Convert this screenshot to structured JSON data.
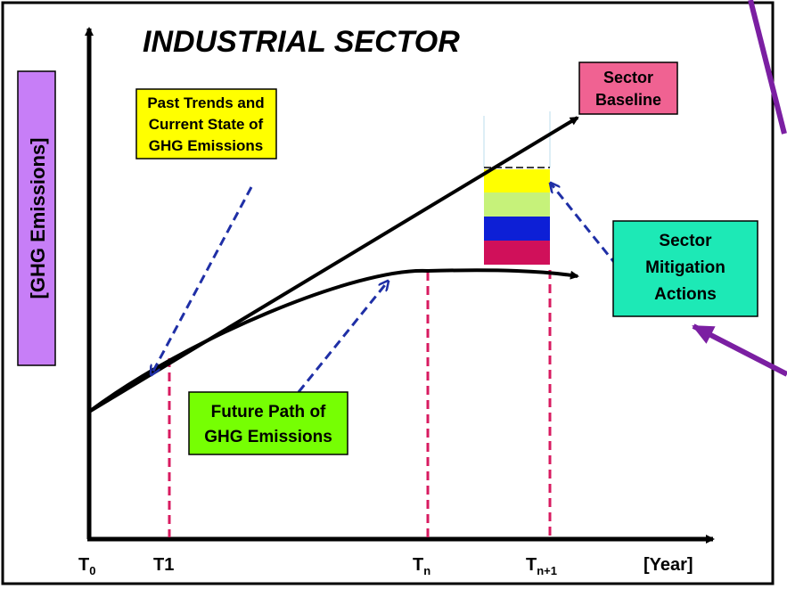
{
  "title": "INDUSTRIAL SECTOR",
  "y_axis_label": "[GHG Emissions]",
  "x_axis_label": "[Year]",
  "boxes": {
    "past_trends": {
      "lines": [
        "Past Trends and",
        "Current State of",
        "GHG Emissions"
      ]
    },
    "baseline": {
      "lines": [
        "Sector",
        "Baseline"
      ]
    },
    "mitigation": {
      "lines": [
        "Sector",
        "Mitigation",
        "Actions"
      ]
    },
    "future_path": {
      "lines": [
        "Future Path of",
        "GHG Emissions"
      ]
    }
  },
  "time_labels": [
    {
      "base": "T",
      "sub": "0"
    },
    {
      "base": "T1"
    },
    {
      "base": "T",
      "sub": "n"
    },
    {
      "base": "T",
      "sub": "n+1"
    }
  ]
}
